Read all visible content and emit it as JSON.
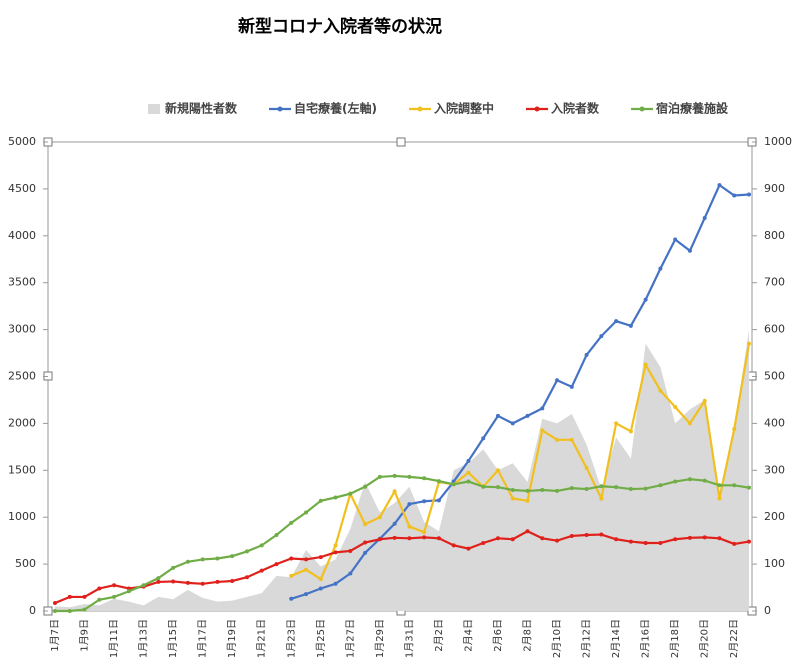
{
  "chart_data": {
    "type": "line",
    "title": "新型コロナ入院者等の状況",
    "categories": [
      "1月7日",
      null,
      "1月9日",
      null,
      "1月11日",
      null,
      "1月13日",
      null,
      "1月15日",
      null,
      "1月17日",
      null,
      "1月19日",
      null,
      "1月21日",
      null,
      "1月23日",
      null,
      "1月25日",
      null,
      "1月27日",
      null,
      "1月29日",
      null,
      "1月31日",
      null,
      "2月2日",
      null,
      "2月4日",
      null,
      "2月6日",
      null,
      "2月8日",
      null,
      "2月10日",
      null,
      "2月12日",
      null,
      "2月14日",
      null,
      "2月16日",
      null,
      "2月18日",
      null,
      "2月20日",
      null,
      "2月22日",
      null
    ],
    "series": [
      {
        "name": "新規陽性者数",
        "kind": "area",
        "color": "#d9d9d9",
        "axis": "y2",
        "values": [
          10,
          8,
          15,
          12,
          26,
          20,
          12,
          30,
          25,
          45,
          28,
          20,
          22,
          30,
          38,
          75,
          72,
          130,
          95,
          110,
          175,
          275,
          210,
          230,
          265,
          190,
          170,
          300,
          315,
          345,
          300,
          315,
          275,
          410,
          400,
          420,
          355,
          260,
          370,
          325,
          570,
          520,
          400,
          430,
          450,
          255,
          390,
          600
        ]
      },
      {
        "name": "自宅療養(左軸)",
        "kind": "line",
        "color": "#4472c4",
        "values": [
          null,
          null,
          null,
          null,
          null,
          null,
          null,
          null,
          null,
          null,
          null,
          null,
          null,
          null,
          null,
          null,
          130,
          180,
          240,
          290,
          400,
          620,
          770,
          930,
          1140,
          1170,
          1180,
          1380,
          1600,
          1840,
          2080,
          2000,
          2080,
          2160,
          2460,
          2390,
          2730,
          2930,
          3090,
          3040,
          3320,
          3650,
          3960,
          3840,
          4190,
          4540,
          4430,
          4440
        ]
      },
      {
        "name": "入院調整中",
        "kind": "line",
        "color": "#f2c01e",
        "axis": "y2",
        "values": [
          null,
          null,
          null,
          null,
          null,
          null,
          null,
          null,
          null,
          null,
          null,
          null,
          null,
          null,
          null,
          null,
          75,
          88,
          68,
          140,
          250,
          185,
          200,
          255,
          180,
          168,
          275,
          270,
          295,
          265,
          300,
          240,
          235,
          385,
          365,
          365,
          305,
          240,
          400,
          383,
          525,
          470,
          435,
          400,
          448,
          240,
          388,
          570
        ]
      },
      {
        "name": "入院者数",
        "kind": "line",
        "color": "#e0201b",
        "axis": "y2",
        "values": [
          17,
          30,
          30,
          48,
          55,
          48,
          52,
          62,
          63,
          60,
          58,
          62,
          64,
          72,
          86,
          100,
          112,
          110,
          115,
          125,
          128,
          146,
          153,
          156,
          155,
          157,
          155,
          140,
          133,
          145,
          155,
          153,
          170,
          155,
          150,
          160,
          162,
          163,
          153,
          148,
          145,
          145,
          153,
          156,
          157,
          155,
          143,
          148
        ]
      },
      {
        "name": "宿泊療養施設",
        "kind": "line",
        "color": "#70ad47",
        "axis": "y2",
        "values": [
          0,
          0,
          3,
          24,
          30,
          42,
          55,
          70,
          92,
          105,
          110,
          112,
          117,
          127,
          140,
          162,
          188,
          210,
          235,
          242,
          250,
          265,
          286,
          288,
          286,
          283,
          277,
          270,
          276,
          265,
          264,
          258,
          256,
          258,
          256,
          262,
          260,
          266,
          264,
          260,
          261,
          268,
          276,
          281,
          278,
          268,
          268,
          263
        ]
      }
    ],
    "ylim": [
      0,
      5000
    ],
    "yticks": [
      0,
      500,
      1000,
      1500,
      2000,
      2500,
      3000,
      3500,
      4000,
      4500,
      5000
    ],
    "y2lim": [
      0,
      1000
    ],
    "y2ticks": [
      0,
      100,
      200,
      300,
      400,
      500,
      600,
      700,
      800,
      900,
      1000
    ],
    "legend": "top"
  }
}
